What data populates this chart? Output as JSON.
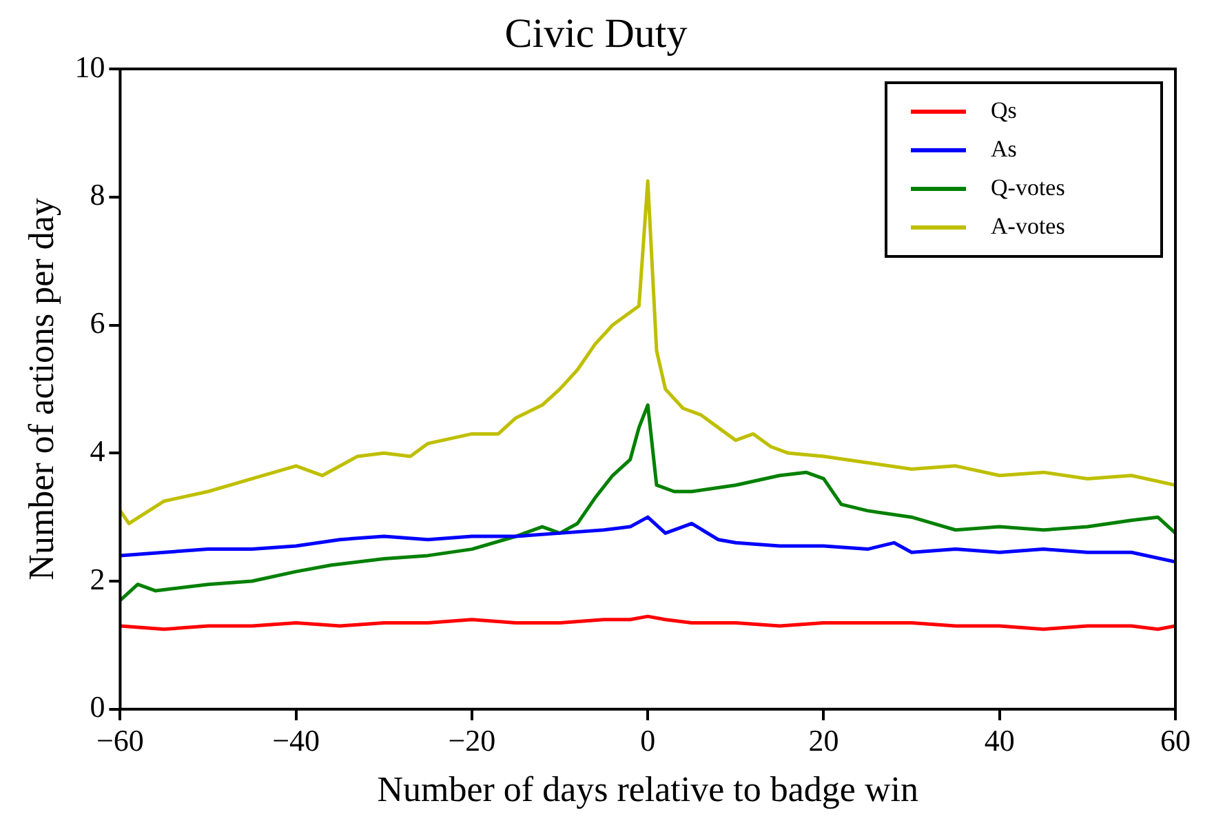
{
  "chart_data": {
    "type": "line",
    "title": "Civic Duty",
    "xlabel": "Number of days relative to badge win",
    "ylabel": "Number of actions per day",
    "xlim": [
      -60,
      60
    ],
    "xticks": [
      {
        "value": -60,
        "label": "−60"
      },
      {
        "value": -40,
        "label": "−40"
      },
      {
        "value": -20,
        "label": "−20"
      },
      0,
      20,
      40,
      60
    ],
    "ylim": [
      0,
      10
    ],
    "yticks": [
      0,
      2,
      4,
      6,
      8,
      10
    ],
    "grid": false,
    "legend": "top right",
    "marker": "none",
    "line_style": "solid",
    "series": [
      {
        "name": "Qs",
        "color": "#ff0000",
        "x": [
          -60,
          -55,
          -50,
          -45,
          -40,
          -35,
          -30,
          -25,
          -20,
          -15,
          -10,
          -5,
          -2,
          0,
          2,
          5,
          10,
          15,
          20,
          25,
          30,
          35,
          40,
          45,
          50,
          55,
          58,
          60
        ],
        "values": [
          1.3,
          1.25,
          1.3,
          1.3,
          1.35,
          1.3,
          1.35,
          1.35,
          1.4,
          1.35,
          1.35,
          1.4,
          1.4,
          1.45,
          1.4,
          1.35,
          1.35,
          1.3,
          1.35,
          1.35,
          1.35,
          1.3,
          1.3,
          1.25,
          1.3,
          1.3,
          1.25,
          1.3
        ]
      },
      {
        "name": "As",
        "color": "#0000ff",
        "x": [
          -60,
          -55,
          -50,
          -45,
          -40,
          -35,
          -30,
          -25,
          -20,
          -15,
          -10,
          -5,
          -2,
          0,
          2,
          5,
          8,
          10,
          15,
          20,
          25,
          28,
          30,
          35,
          40,
          45,
          50,
          55,
          60
        ],
        "values": [
          2.4,
          2.45,
          2.5,
          2.5,
          2.55,
          2.65,
          2.7,
          2.65,
          2.7,
          2.7,
          2.75,
          2.8,
          2.85,
          3.0,
          2.75,
          2.9,
          2.65,
          2.6,
          2.55,
          2.55,
          2.5,
          2.6,
          2.45,
          2.5,
          2.45,
          2.5,
          2.45,
          2.45,
          2.3
        ]
      },
      {
        "name": "Q-votes",
        "color": "#008000",
        "x": [
          -60,
          -58,
          -56,
          -50,
          -45,
          -40,
          -36,
          -30,
          -25,
          -20,
          -15,
          -12,
          -10,
          -8,
          -6,
          -4,
          -2,
          -1,
          0,
          1,
          3,
          5,
          10,
          15,
          18,
          20,
          22,
          25,
          30,
          35,
          40,
          45,
          50,
          55,
          58,
          60
        ],
        "values": [
          1.7,
          1.95,
          1.85,
          1.95,
          2.0,
          2.15,
          2.25,
          2.35,
          2.4,
          2.5,
          2.7,
          2.85,
          2.75,
          2.9,
          3.3,
          3.65,
          3.9,
          4.4,
          4.75,
          3.5,
          3.4,
          3.4,
          3.5,
          3.65,
          3.7,
          3.6,
          3.2,
          3.1,
          3.0,
          2.8,
          2.85,
          2.8,
          2.85,
          2.95,
          3.0,
          2.75
        ]
      },
      {
        "name": "A-votes",
        "color": "#bfbf00",
        "x": [
          -60,
          -59,
          -55,
          -50,
          -45,
          -40,
          -37,
          -33,
          -30,
          -27,
          -25,
          -20,
          -17,
          -15,
          -12,
          -10,
          -8,
          -6,
          -4,
          -2,
          -1,
          0,
          1,
          2,
          4,
          6,
          8,
          10,
          12,
          14,
          16,
          20,
          25,
          30,
          35,
          40,
          45,
          50,
          55,
          60
        ],
        "values": [
          3.1,
          2.9,
          3.25,
          3.4,
          3.6,
          3.8,
          3.65,
          3.95,
          4.0,
          3.95,
          4.15,
          4.3,
          4.3,
          4.55,
          4.75,
          5.0,
          5.3,
          5.7,
          6.0,
          6.2,
          6.3,
          8.25,
          5.6,
          5.0,
          4.7,
          4.6,
          4.4,
          4.2,
          4.3,
          4.1,
          4.0,
          3.95,
          3.85,
          3.75,
          3.8,
          3.65,
          3.7,
          3.6,
          3.65,
          3.5
        ]
      }
    ]
  }
}
